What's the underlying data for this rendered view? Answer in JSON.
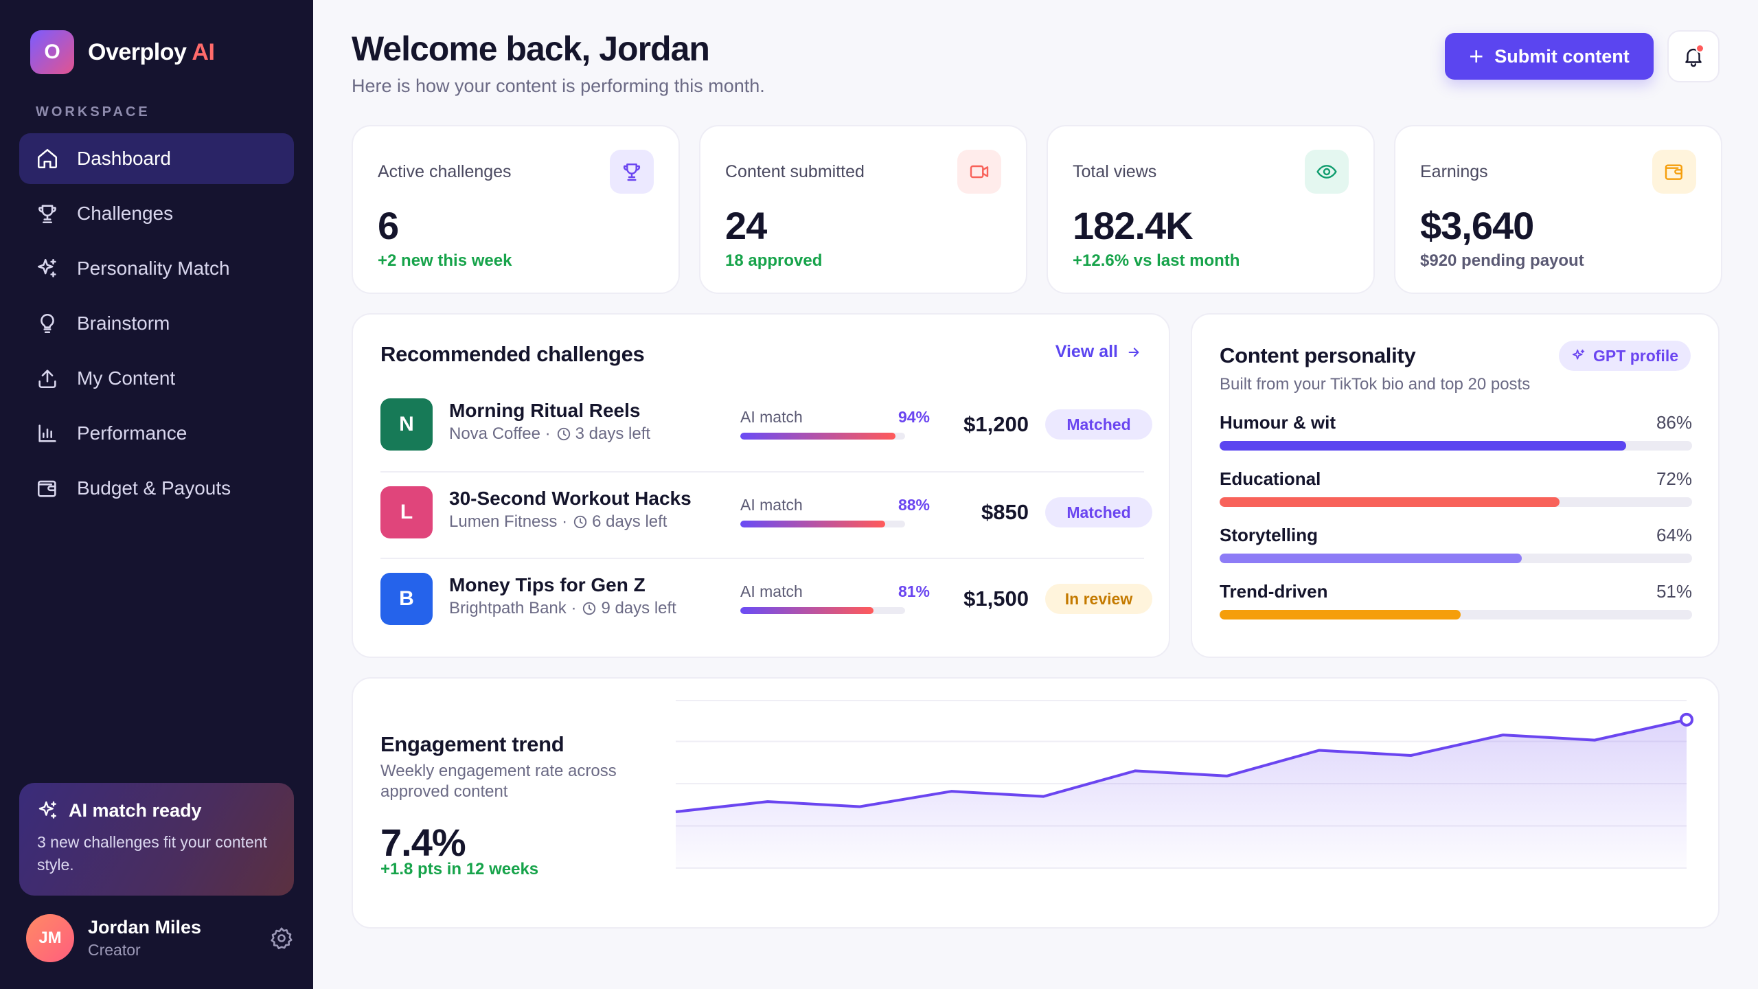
{
  "brand": {
    "name": "Overploy",
    "accent": "AI",
    "logo_letter": "O"
  },
  "sidebar": {
    "section_label": "WORKSPACE",
    "items": [
      {
        "label": "Dashboard",
        "icon": "home-icon",
        "active": true
      },
      {
        "label": "Challenges",
        "icon": "trophy-icon"
      },
      {
        "label": "Personality Match",
        "icon": "sparkles-icon"
      },
      {
        "label": "Brainstorm",
        "icon": "lightbulb-icon"
      },
      {
        "label": "My Content",
        "icon": "upload-icon"
      },
      {
        "label": "Performance",
        "icon": "bar-chart-icon"
      },
      {
        "label": "Budget & Payouts",
        "icon": "wallet-icon"
      }
    ],
    "ai_card": {
      "title": "AI match ready",
      "text": "3 new challenges fit your content style."
    },
    "user": {
      "initials": "JM",
      "name": "Jordan Miles",
      "role": "Creator"
    }
  },
  "header": {
    "title": "Welcome back, Jordan",
    "subtitle": "Here is how your content is performing this month.",
    "submit_label": "Submit content"
  },
  "stats": [
    {
      "label": "Active challenges",
      "value": "6",
      "note": "+2 new this week",
      "icon": "trophy-icon"
    },
    {
      "label": "Content submitted",
      "value": "24",
      "note": "18 approved",
      "icon": "video-icon"
    },
    {
      "label": "Total views",
      "value": "182.4K",
      "note": "+12.6% vs last month",
      "icon": "eye-icon"
    },
    {
      "label": "Earnings",
      "value": "$3,640",
      "note": "$920 pending payout",
      "icon": "wallet-icon"
    }
  ],
  "recommended": {
    "title": "Recommended challenges",
    "view_all": "View all",
    "match_label": "AI match",
    "rows": [
      {
        "letter": "N",
        "title": "Morning Ritual Reels",
        "brand": "Nova Coffee ·",
        "days": "3 days left",
        "match_pct": "94%",
        "match": 0.94,
        "amount": "$1,200",
        "status": "Matched"
      },
      {
        "letter": "L",
        "title": "30-Second Workout Hacks",
        "brand": "Lumen Fitness ·",
        "days": "6 days left",
        "match_pct": "88%",
        "match": 0.88,
        "amount": "$850",
        "status": "Matched"
      },
      {
        "letter": "B",
        "title": "Money Tips for Gen Z",
        "brand": "Brightpath Bank ·",
        "days": "9 days left",
        "match_pct": "81%",
        "match": 0.81,
        "amount": "$1,500",
        "status": "In review"
      }
    ]
  },
  "personality": {
    "title": "Content personality",
    "badge": "GPT profile",
    "subtitle": "Built from your TikTok bio and top 20 posts",
    "traits": [
      {
        "name": "Humour & wit",
        "pct": "86%",
        "value": 0.86,
        "color": "#5b45f0"
      },
      {
        "name": "Educational",
        "pct": "72%",
        "value": 0.72,
        "color": "#f8625a"
      },
      {
        "name": "Storytelling",
        "pct": "64%",
        "value": 0.64,
        "color": "#8d7cf6"
      },
      {
        "name": "Trend-driven",
        "pct": "51%",
        "value": 0.51,
        "color": "#f59e0b"
      }
    ]
  },
  "engagement": {
    "title": "Engagement trend",
    "subtitle": "Weekly engagement rate across approved content",
    "value": "7.4%",
    "note": "+1.8 pts in 12 weeks"
  },
  "chart_data": {
    "type": "area",
    "x": [
      1,
      2,
      3,
      4,
      5,
      6,
      7,
      8,
      9,
      10,
      11,
      12
    ],
    "values": [
      5.6,
      5.8,
      5.7,
      6.0,
      5.9,
      6.4,
      6.3,
      6.8,
      6.7,
      7.1,
      7.0,
      7.4
    ],
    "ylim": [
      4.5,
      7.8
    ],
    "grid": true,
    "color": "#6a45f0"
  }
}
